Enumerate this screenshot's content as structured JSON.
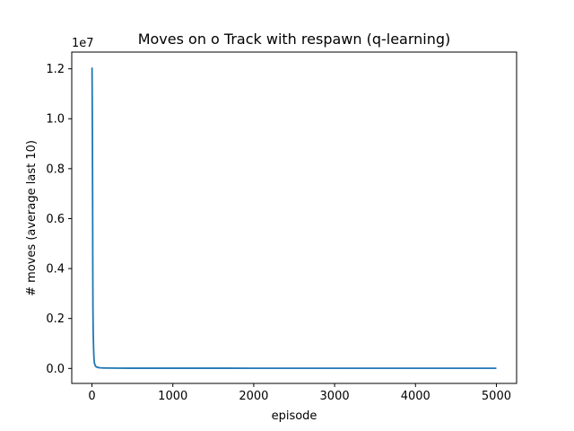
{
  "chart_data": {
    "type": "line",
    "title": "Moves on o Track with respawn (q-learning)",
    "xlabel": "episode",
    "ylabel": "# moves (average last 10)",
    "y_offset_label": "1e7",
    "xlim": [
      -250,
      5250
    ],
    "ylim": [
      -600000,
      12670000
    ],
    "x_ticks": [
      0,
      1000,
      2000,
      3000,
      4000,
      5000
    ],
    "x_tick_labels": [
      "0",
      "1000",
      "2000",
      "3000",
      "4000",
      "5000"
    ],
    "y_ticks": [
      0,
      2000000,
      4000000,
      6000000,
      8000000,
      10000000,
      12000000
    ],
    "y_tick_labels": [
      "0.0",
      "0.2",
      "0.4",
      "0.6",
      "0.8",
      "1.0",
      "1.2"
    ],
    "grid": false,
    "series": [
      {
        "color": "#1f77b4",
        "x": [
          1,
          5,
          8,
          10,
          12,
          15,
          20,
          25,
          30,
          40,
          50,
          70,
          100,
          150,
          200,
          300,
          500,
          1000,
          2000,
          3000,
          4000,
          5000
        ],
        "y": [
          12050000,
          9600000,
          6700000,
          4200000,
          2400000,
          1500000,
          800000,
          400000,
          220000,
          120000,
          70000,
          40000,
          25000,
          18000,
          15000,
          12000,
          10000,
          9000,
          8000,
          8000,
          8000,
          8000
        ]
      }
    ]
  }
}
